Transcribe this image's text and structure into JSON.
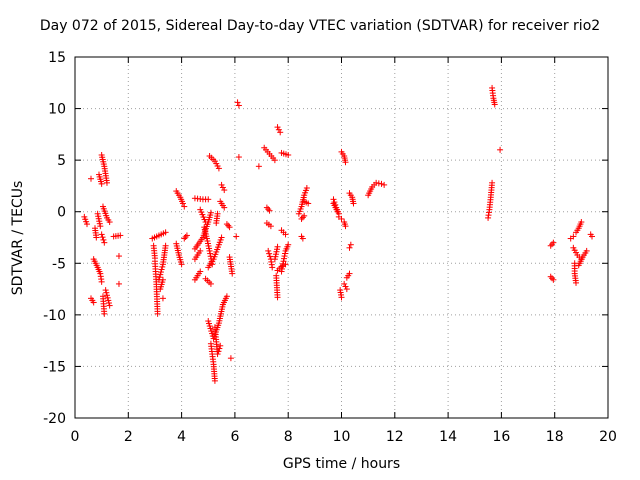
{
  "chart_data": {
    "type": "scatter",
    "title": "Day 072 of 2015, Sidereal Day-to-day VTEC variation (SDTVAR) for receiver rio2",
    "xlabel": "GPS time / hours",
    "ylabel": "SDTVAR / TECUs",
    "xlim": [
      0,
      20
    ],
    "ylim": [
      -20,
      15
    ],
    "x_ticks": [
      0,
      2,
      4,
      6,
      8,
      10,
      12,
      14,
      16,
      18,
      20
    ],
    "y_ticks": [
      -20,
      -15,
      -10,
      -5,
      0,
      5,
      10,
      15
    ],
    "x_tick_labels": [
      "0",
      "2",
      "4",
      "6",
      "8",
      "10",
      "12",
      "14",
      "16",
      "18",
      "20"
    ],
    "y_tick_labels": [
      "-20",
      "-15",
      "-10",
      "-5",
      "0",
      "5",
      "10",
      "15"
    ],
    "grid": true,
    "marker": "+",
    "color": "#ff0000",
    "series": [
      {
        "name": "SDTVAR",
        "segments": [
          [
            [
              0.35,
              -0.5
            ],
            [
              0.45,
              -1.2
            ]
          ],
          [
            [
              0.6,
              3.2
            ]
          ],
          [
            [
              0.6,
              -8.4
            ],
            [
              0.7,
              -8.8
            ]
          ],
          [
            [
              0.75,
              -1.6
            ],
            [
              0.8,
              -2.5
            ]
          ],
          [
            [
              0.7,
              -4.6
            ],
            [
              0.85,
              -5.4
            ],
            [
              0.95,
              -6.0
            ],
            [
              1.0,
              -6.8
            ]
          ],
          [
            [
              0.85,
              -0.2
            ],
            [
              0.95,
              -1.4
            ]
          ],
          [
            [
              0.9,
              3.6
            ],
            [
              1.0,
              2.7
            ]
          ],
          [
            [
              1.0,
              5.5
            ],
            [
              1.1,
              4.4
            ],
            [
              1.2,
              2.8
            ]
          ],
          [
            [
              1.05,
              0.5
            ],
            [
              1.2,
              -0.6
            ],
            [
              1.3,
              -1.0
            ]
          ],
          [
            [
              1.0,
              -2.2
            ],
            [
              1.1,
              -3.0
            ]
          ],
          [
            [
              1.05,
              -8.2
            ],
            [
              1.1,
              -9.9
            ]
          ],
          [
            [
              1.15,
              -7.6
            ],
            [
              1.3,
              -9.1
            ]
          ],
          [
            [
              1.45,
              -2.4
            ],
            [
              1.7,
              -2.3
            ]
          ],
          [
            [
              1.65,
              -4.3
            ]
          ],
          [
            [
              1.65,
              -7.0
            ]
          ],
          [
            [
              2.9,
              -2.6
            ],
            [
              3.15,
              -2.3
            ],
            [
              3.4,
              -2.0
            ]
          ],
          [
            [
              2.95,
              -3.3
            ],
            [
              3.0,
              -4.5
            ]
          ],
          [
            [
              3.0,
              -4.8
            ],
            [
              3.05,
              -6.8
            ],
            [
              3.1,
              -9.9
            ]
          ],
          [
            [
              3.15,
              -6.6
            ],
            [
              3.3,
              -5.1
            ],
            [
              3.4,
              -3.3
            ]
          ],
          [
            [
              3.2,
              -7.5
            ],
            [
              3.3,
              -6.6
            ]
          ],
          [
            [
              3.3,
              -8.4
            ]
          ],
          [
            [
              3.8,
              2.0
            ],
            [
              3.95,
              1.4
            ],
            [
              4.05,
              0.8
            ]
          ],
          [
            [
              3.8,
              -3.1
            ],
            [
              3.9,
              -4.2
            ],
            [
              4.0,
              -5.1
            ]
          ],
          [
            [
              4.1,
              0.5
            ]
          ],
          [
            [
              4.1,
              -2.6
            ],
            [
              4.2,
              -2.3
            ]
          ],
          [
            [
              4.5,
              -3.6
            ],
            [
              4.8,
              -2.5
            ],
            [
              5.0,
              -1.0
            ],
            [
              5.1,
              -0.1
            ]
          ],
          [
            [
              4.5,
              -4.6
            ],
            [
              4.7,
              -3.8
            ]
          ],
          [
            [
              4.5,
              -6.6
            ],
            [
              4.7,
              -5.8
            ]
          ],
          [
            [
              4.5,
              1.3
            ],
            [
              4.8,
              1.2
            ],
            [
              5.0,
              1.2
            ]
          ],
          [
            [
              4.7,
              0.2
            ],
            [
              4.9,
              -1.0
            ]
          ],
          [
            [
              4.85,
              -1.5
            ],
            [
              4.95,
              -2.6
            ],
            [
              5.05,
              -3.8
            ],
            [
              5.15,
              -5.1
            ]
          ],
          [
            [
              4.9,
              -6.5
            ],
            [
              5.1,
              -7.0
            ]
          ],
          [
            [
              5.0,
              -10.6
            ],
            [
              5.2,
              -12.3
            ],
            [
              5.4,
              -10.8
            ],
            [
              5.55,
              -9.0
            ],
            [
              5.7,
              -8.2
            ]
          ],
          [
            [
              5.1,
              -12.8
            ],
            [
              5.2,
              -14.8
            ],
            [
              5.25,
              -16.4
            ]
          ],
          [
            [
              5.25,
              -11.2
            ],
            [
              5.35,
              -13.8
            ],
            [
              5.45,
              -13.0
            ]
          ],
          [
            [
              5.0,
              -5.4
            ],
            [
              5.2,
              -4.6
            ],
            [
              5.4,
              -3.2
            ],
            [
              5.5,
              -2.5
            ]
          ],
          [
            [
              5.05,
              5.4
            ],
            [
              5.25,
              4.9
            ],
            [
              5.4,
              4.2
            ]
          ],
          [
            [
              5.3,
              -1.1
            ],
            [
              5.35,
              -0.2
            ]
          ],
          [
            [
              5.5,
              2.6
            ],
            [
              5.6,
              2.1
            ]
          ],
          [
            [
              5.45,
              1.0
            ],
            [
              5.6,
              0.4
            ]
          ],
          [
            [
              5.7,
              -1.2
            ],
            [
              5.8,
              -1.5
            ]
          ],
          [
            [
              5.8,
              -4.4
            ],
            [
              5.9,
              -6.0
            ]
          ],
          [
            [
              5.85,
              -14.2
            ]
          ],
          [
            [
              6.05,
              -2.4
            ]
          ],
          [
            [
              6.1,
              10.6
            ],
            [
              6.15,
              10.3
            ]
          ],
          [
            [
              6.15,
              5.3
            ]
          ],
          [
            [
              6.9,
              4.4
            ]
          ],
          [
            [
              7.1,
              6.2
            ],
            [
              7.3,
              5.6
            ],
            [
              7.5,
              5.0
            ]
          ],
          [
            [
              7.2,
              0.4
            ],
            [
              7.3,
              0.1
            ]
          ],
          [
            [
              7.2,
              -1.1
            ],
            [
              7.35,
              -1.4
            ]
          ],
          [
            [
              7.25,
              -3.8
            ],
            [
              7.35,
              -4.6
            ],
            [
              7.4,
              -5.4
            ]
          ],
          [
            [
              7.5,
              -4.6
            ],
            [
              7.6,
              -3.4
            ]
          ],
          [
            [
              7.55,
              -6.2
            ],
            [
              7.6,
              -8.3
            ]
          ],
          [
            [
              7.6,
              -5.7
            ],
            [
              7.8,
              -5.2
            ],
            [
              7.9,
              -5.1
            ]
          ],
          [
            [
              7.6,
              8.2
            ],
            [
              7.7,
              7.7
            ]
          ],
          [
            [
              7.75,
              -1.8
            ],
            [
              7.9,
              -2.2
            ]
          ],
          [
            [
              7.75,
              5.7
            ],
            [
              8.0,
              5.5
            ]
          ],
          [
            [
              7.75,
              -5.8
            ],
            [
              7.9,
              -3.8
            ],
            [
              8.0,
              -3.2
            ]
          ],
          [
            [
              8.4,
              -0.2
            ],
            [
              8.5,
              0.5
            ],
            [
              8.6,
              1.6
            ],
            [
              8.7,
              2.3
            ]
          ],
          [
            [
              8.5,
              -0.7
            ],
            [
              8.6,
              -0.4
            ]
          ],
          [
            [
              8.6,
              1.0
            ],
            [
              8.75,
              0.8
            ]
          ],
          [
            [
              8.5,
              -2.4
            ],
            [
              8.55,
              -2.6
            ]
          ],
          [
            [
              9.7,
              1.2
            ],
            [
              9.8,
              0.4
            ],
            [
              9.9,
              -0.2
            ]
          ],
          [
            [
              9.7,
              0.8
            ],
            [
              9.85,
              0.0
            ]
          ],
          [
            [
              9.9,
              -0.5
            ],
            [
              10.0,
              -0.7
            ]
          ],
          [
            [
              9.95,
              -7.6
            ],
            [
              10.0,
              -8.3
            ]
          ],
          [
            [
              10.0,
              5.8
            ],
            [
              10.1,
              5.4
            ],
            [
              10.15,
              4.8
            ]
          ],
          [
            [
              10.1,
              -1.0
            ],
            [
              10.15,
              -1.4
            ]
          ],
          [
            [
              10.1,
              -7.0
            ],
            [
              10.2,
              -7.5
            ]
          ],
          [
            [
              10.2,
              -6.4
            ],
            [
              10.3,
              -6.0
            ]
          ],
          [
            [
              10.3,
              1.8
            ],
            [
              10.4,
              1.4
            ],
            [
              10.45,
              0.8
            ]
          ],
          [
            [
              10.3,
              -3.5
            ],
            [
              10.35,
              -3.2
            ]
          ],
          [
            [
              11.0,
              1.6
            ],
            [
              11.15,
              2.4
            ],
            [
              11.3,
              2.8
            ],
            [
              11.5,
              2.7
            ],
            [
              11.6,
              2.6
            ]
          ],
          [
            [
              15.5,
              -0.6
            ],
            [
              15.55,
              0.2
            ],
            [
              15.6,
              1.4
            ],
            [
              15.65,
              2.8
            ]
          ],
          [
            [
              15.65,
              12.0
            ],
            [
              15.7,
              11.0
            ],
            [
              15.75,
              10.4
            ]
          ],
          [
            [
              15.95,
              6.0
            ]
          ],
          [
            [
              17.85,
              -3.3
            ],
            [
              17.95,
              -3.0
            ]
          ],
          [
            [
              17.85,
              -6.3
            ],
            [
              17.95,
              -6.6
            ]
          ],
          [
            [
              18.6,
              -2.6
            ],
            [
              18.7,
              -2.4
            ]
          ],
          [
            [
              18.8,
              -2.0
            ],
            [
              18.9,
              -1.6
            ],
            [
              19.0,
              -1.0
            ]
          ],
          [
            [
              18.7,
              -3.5
            ],
            [
              18.85,
              -4.2
            ],
            [
              19.0,
              -4.6
            ]
          ],
          [
            [
              18.75,
              -5.0
            ],
            [
              18.75,
              -6.0
            ],
            [
              18.8,
              -6.9
            ]
          ],
          [
            [
              18.9,
              -5.2
            ],
            [
              19.05,
              -4.4
            ],
            [
              19.2,
              -3.8
            ]
          ],
          [
            [
              19.35,
              -2.2
            ],
            [
              19.4,
              -2.4
            ]
          ]
        ]
      }
    ]
  }
}
